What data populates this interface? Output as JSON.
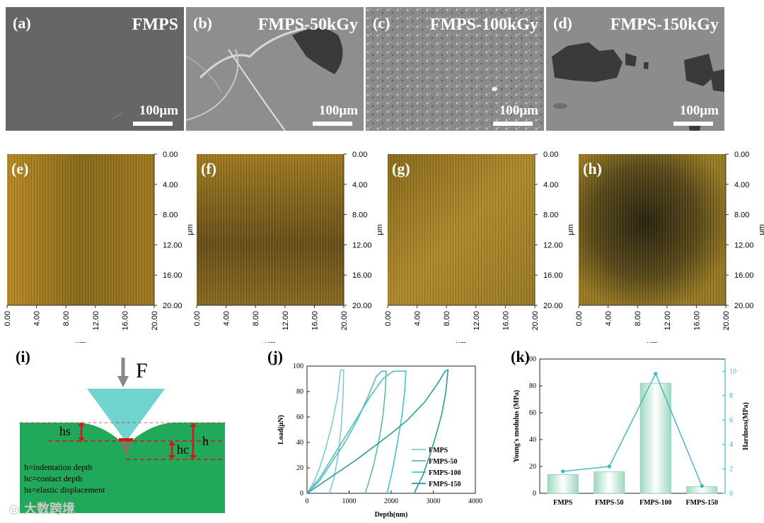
{
  "sem_panels": [
    {
      "tag": "(a)",
      "title": "FMPS",
      "scale": "100μm"
    },
    {
      "tag": "(b)",
      "title": "FMPS-50kGy",
      "scale": "100μm"
    },
    {
      "tag": "(c)",
      "title": "FMPS-100kGy",
      "scale": "100μm"
    },
    {
      "tag": "(d)",
      "title": "FMPS-150kGy",
      "scale": "100μm"
    }
  ],
  "afm_panels": [
    {
      "tag": "(e)"
    },
    {
      "tag": "(f)"
    },
    {
      "tag": "(g)"
    },
    {
      "tag": "(h)"
    }
  ],
  "afm_axis": {
    "x_ticks": [
      "0.00",
      "4.00",
      "8.00",
      "12.00",
      "16.00",
      "20.00"
    ],
    "y_ticks": [
      "0.00",
      "4.00",
      "8.00",
      "12.00",
      "16.00",
      "20.00"
    ],
    "unit": "μm"
  },
  "diagram_i": {
    "tag": "(i)",
    "force": "F",
    "hs": "hs",
    "hc": "hc",
    "h": "h",
    "notes": [
      "h=indentation depth",
      "hc=contact depth",
      "hs=elastic displacement"
    ]
  },
  "chart_data": [
    {
      "tag": "(j)",
      "type": "line",
      "xlabel": "Depth(nm)",
      "ylabel": "Load(μN)",
      "xlim": [
        0,
        4000
      ],
      "ylim": [
        0,
        100
      ],
      "x_ticks": [
        0,
        1000,
        2000,
        3000,
        4000
      ],
      "y_ticks": [
        0,
        20,
        40,
        60,
        80,
        100
      ],
      "legend_position": "right",
      "series": [
        {
          "name": "FMPS",
          "color": "#7fc9d9",
          "loading": [
            [
              0,
              0
            ],
            [
              150,
              8
            ],
            [
              300,
              20
            ],
            [
              450,
              36
            ],
            [
              600,
              55
            ],
            [
              720,
              75
            ],
            [
              800,
              97
            ],
            [
              870,
              97
            ]
          ],
          "unloading": [
            [
              870,
              97
            ],
            [
              860,
              80
            ],
            [
              820,
              55
            ],
            [
              740,
              30
            ],
            [
              640,
              12
            ],
            [
              560,
              3
            ],
            [
              520,
              0
            ]
          ]
        },
        {
          "name": "FMPS-50",
          "color": "#5fb8a8",
          "loading": [
            [
              0,
              0
            ],
            [
              300,
              10
            ],
            [
              600,
              25
            ],
            [
              900,
              40
            ],
            [
              1200,
              58
            ],
            [
              1450,
              76
            ],
            [
              1650,
              92
            ],
            [
              1780,
              96
            ],
            [
              1880,
              96
            ]
          ],
          "unloading": [
            [
              1880,
              96
            ],
            [
              1860,
              80
            ],
            [
              1800,
              60
            ],
            [
              1700,
              40
            ],
            [
              1580,
              22
            ],
            [
              1460,
              8
            ],
            [
              1380,
              0
            ]
          ]
        },
        {
          "name": "FMPS-100",
          "color": "#44c4cc",
          "loading": [
            [
              0,
              0
            ],
            [
              300,
              12
            ],
            [
              600,
              28
            ],
            [
              900,
              44
            ],
            [
              1200,
              60
            ],
            [
              1500,
              76
            ],
            [
              1800,
              90
            ],
            [
              2050,
              96
            ],
            [
              2350,
              96
            ]
          ],
          "unloading": [
            [
              2350,
              96
            ],
            [
              2320,
              80
            ],
            [
              2250,
              60
            ],
            [
              2150,
              40
            ],
            [
              2050,
              22
            ],
            [
              1960,
              8
            ],
            [
              1900,
              0
            ]
          ]
        },
        {
          "name": "FMPS-150",
          "color": "#2a9a9a",
          "loading": [
            [
              0,
              0
            ],
            [
              400,
              9
            ],
            [
              800,
              18
            ],
            [
              1200,
              27
            ],
            [
              1600,
              37
            ],
            [
              2000,
              47
            ],
            [
              2400,
              58
            ],
            [
              2800,
              72
            ],
            [
              3100,
              86
            ],
            [
              3280,
              96
            ],
            [
              3350,
              97
            ]
          ],
          "unloading": [
            [
              3350,
              97
            ],
            [
              3300,
              80
            ],
            [
              3200,
              62
            ],
            [
              3050,
              44
            ],
            [
              2900,
              28
            ],
            [
              2750,
              14
            ],
            [
              2600,
              4
            ],
            [
              2550,
              0
            ]
          ]
        }
      ]
    },
    {
      "tag": "(k)",
      "type": "bar",
      "categories": [
        "FMPS",
        "FMPS-50",
        "FMPS-100",
        "FMPS-150"
      ],
      "ylabel": "Young's modulus (MPa)",
      "ylim": [
        0,
        100
      ],
      "y_ticks": [
        0,
        20,
        40,
        60,
        80,
        100
      ],
      "y2label": "Hardness(MPa)",
      "y2lim": [
        0,
        11
      ],
      "y2_ticks": [
        0,
        2,
        4,
        6,
        8,
        10
      ],
      "series": [
        {
          "name": "Young's modulus",
          "values": [
            14,
            16,
            82,
            5
          ],
          "color": "#a8dcc6",
          "axis": "left"
        },
        {
          "name": "Hardness",
          "values": [
            1.8,
            2.2,
            9.8,
            0.6
          ],
          "color": "#3cb6c6",
          "axis": "right"
        }
      ]
    }
  ],
  "watermark": "大数跨境"
}
